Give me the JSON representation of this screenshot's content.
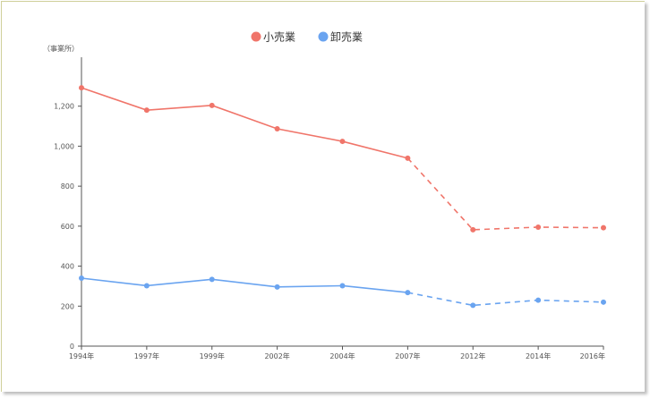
{
  "chart_data": {
    "type": "line",
    "unit_label": "（事業所）",
    "categories": [
      "1994年",
      "1997年",
      "1999年",
      "2002年",
      "2004年",
      "2007年",
      "2012年",
      "2014年",
      "2016年"
    ],
    "y_ticks": [
      "0",
      "200",
      "400",
      "600",
      "800",
      "1,000",
      "1,200"
    ],
    "ylim": [
      0,
      1400
    ],
    "grid": false,
    "legend": "top-center",
    "solid_through_index": 5,
    "series": [
      {
        "name": "小売業",
        "color": "#f0756a",
        "values": [
          1292,
          1180,
          1204,
          1087,
          1024,
          940,
          582,
          595,
          592
        ]
      },
      {
        "name": "卸売業",
        "color": "#6aa4f0",
        "values": [
          340,
          302,
          334,
          296,
          302,
          268,
          204,
          230,
          220
        ]
      }
    ]
  }
}
